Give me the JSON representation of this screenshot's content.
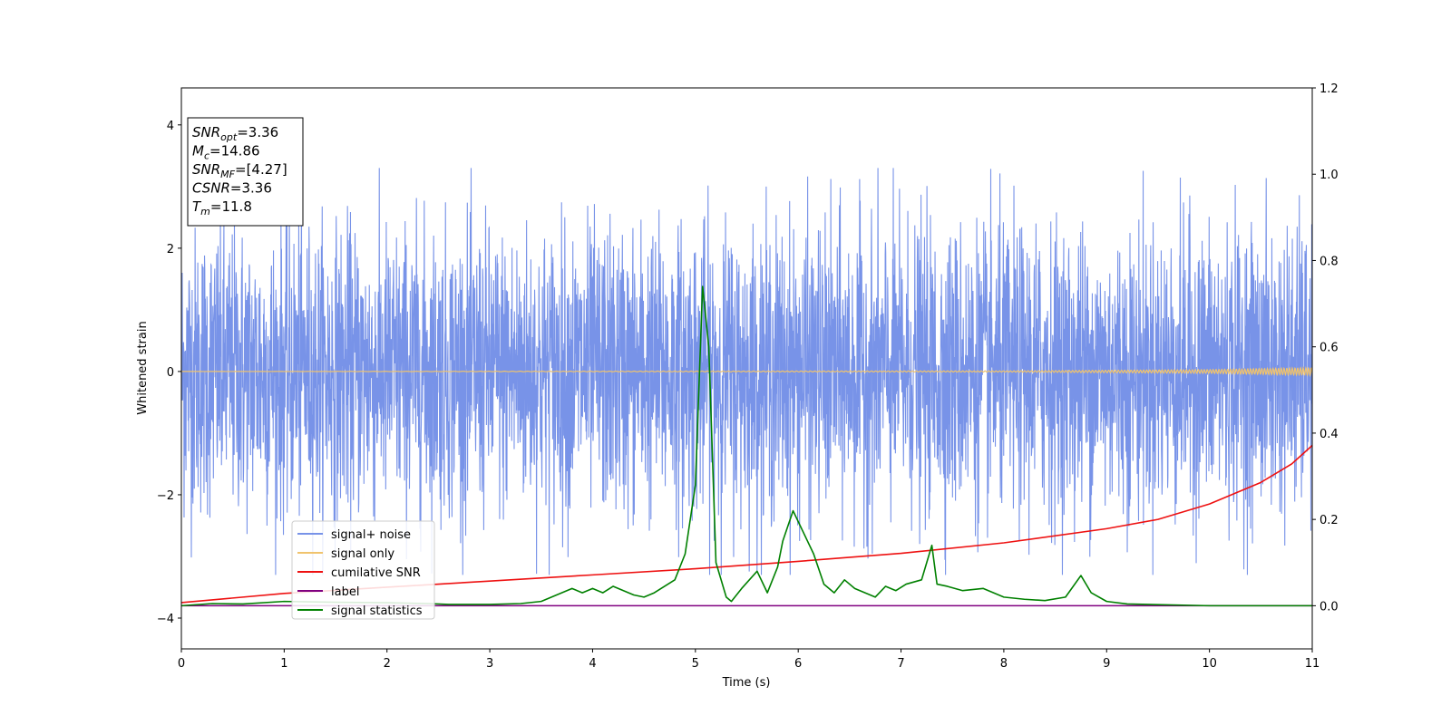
{
  "chart_data": {
    "type": "line",
    "xlabel": "Time (s)",
    "ylabel": "Whitened strain",
    "xlim": [
      0,
      11
    ],
    "ylim_left": [
      -4.5,
      4.6
    ],
    "ylim_right": [
      -0.1,
      1.2
    ],
    "xticks": [
      "0",
      "1",
      "2",
      "3",
      "4",
      "5",
      "6",
      "7",
      "8",
      "9",
      "10",
      "11"
    ],
    "yticks_left": [
      "4",
      "2",
      "0",
      "−2",
      "−4"
    ],
    "yticks_right": [
      "1.2",
      "1.0",
      "0.8",
      "0.6",
      "0.4",
      "0.2",
      "0.0"
    ],
    "legend_position": "lower-left",
    "annotation": {
      "lines": [
        {
          "sym": "SNR",
          "sub": "opt",
          "val": "=3.36"
        },
        {
          "sym": "M",
          "sub": "c",
          "val": "=14.86"
        },
        {
          "sym": "SNR",
          "sub": "MF",
          "val": "=[4.27]"
        },
        {
          "sym": "CSNR",
          "sub": "",
          "val": "=3.36"
        },
        {
          "sym": "T",
          "sub": "m",
          "val": "=11.8"
        }
      ]
    },
    "series": [
      {
        "name": "signal+ noise",
        "color": "#7893e8",
        "axis": "left",
        "noise_std": 1.15,
        "noise_peak": 3.3,
        "x": [
          0,
          11
        ],
        "y": [
          0,
          0
        ]
      },
      {
        "name": "signal only",
        "color": "#f0c36d",
        "axis": "left",
        "x": [
          0,
          8,
          9,
          10,
          10.6,
          11
        ],
        "amplitude": [
          0.0,
          0.01,
          0.02,
          0.03,
          0.05,
          0.06
        ]
      },
      {
        "name": "cumilative SNR",
        "color": "#ee1111",
        "axis": "left",
        "x": [
          0,
          1,
          2,
          3,
          4,
          5,
          6,
          7,
          8,
          9,
          9.5,
          10,
          10.5,
          10.8,
          11
        ],
        "y": [
          -3.75,
          -3.6,
          -3.5,
          -3.4,
          -3.3,
          -3.2,
          -3.08,
          -2.95,
          -2.78,
          -2.55,
          -2.4,
          -2.15,
          -1.8,
          -1.5,
          -1.2
        ]
      },
      {
        "name": "label",
        "color": "#800080",
        "axis": "right",
        "x": [
          0,
          11
        ],
        "y": [
          0,
          0
        ]
      },
      {
        "name": "signal statistics",
        "color": "#008000",
        "axis": "right",
        "x": [
          0,
          0.3,
          0.6,
          1.0,
          1.5,
          2.0,
          2.4,
          2.6,
          3.0,
          3.3,
          3.5,
          3.6,
          3.7,
          3.8,
          3.9,
          4.0,
          4.1,
          4.2,
          4.3,
          4.4,
          4.5,
          4.6,
          4.8,
          4.9,
          5.0,
          5.07,
          5.13,
          5.2,
          5.3,
          5.35,
          5.45,
          5.6,
          5.7,
          5.8,
          5.85,
          5.95,
          6.05,
          6.15,
          6.25,
          6.35,
          6.45,
          6.55,
          6.65,
          6.75,
          6.85,
          6.95,
          7.05,
          7.2,
          7.3,
          7.35,
          7.45,
          7.6,
          7.8,
          8.0,
          8.2,
          8.4,
          8.6,
          8.75,
          8.85,
          9.0,
          9.2,
          10.0,
          11.0
        ],
        "y": [
          0.0,
          0.005,
          0.004,
          0.01,
          0.008,
          0.007,
          0.005,
          0.003,
          0.003,
          0.005,
          0.01,
          0.02,
          0.03,
          0.04,
          0.03,
          0.04,
          0.03,
          0.045,
          0.035,
          0.025,
          0.02,
          0.03,
          0.06,
          0.12,
          0.28,
          0.74,
          0.6,
          0.1,
          0.02,
          0.01,
          0.04,
          0.08,
          0.03,
          0.09,
          0.15,
          0.22,
          0.17,
          0.12,
          0.05,
          0.03,
          0.06,
          0.04,
          0.03,
          0.02,
          0.045,
          0.035,
          0.05,
          0.06,
          0.14,
          0.05,
          0.045,
          0.035,
          0.04,
          0.02,
          0.015,
          0.012,
          0.02,
          0.07,
          0.03,
          0.01,
          0.004,
          0.0,
          0.0
        ]
      }
    ]
  }
}
